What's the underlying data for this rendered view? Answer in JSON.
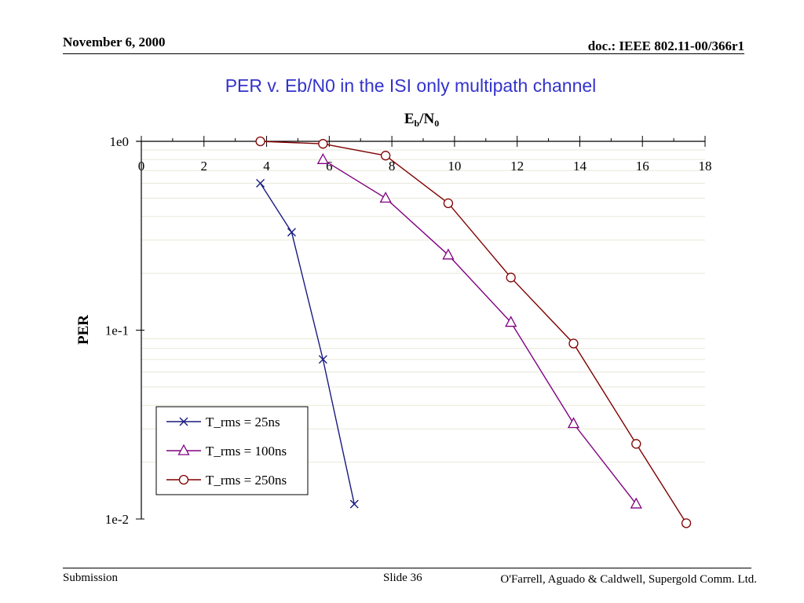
{
  "header": {
    "date": "November 6, 2000",
    "doc": "doc.: IEEE 802.11-00/366r1"
  },
  "slide_title": "PER v. Eb/N0 in the ISI only multipath channel",
  "footer": {
    "left": "Submission",
    "center": "Slide 36",
    "right": "O'Farrell, Aguado & Caldwell, Supergold Comm. Ltd."
  },
  "chart_data": {
    "type": "line",
    "title": "PER v. Eb/N0 in the ISI only multipath channel",
    "xlabel_main": "E",
    "xlabel_sub1": "b",
    "xlabel_mid": "/N",
    "xlabel_sub2": "0",
    "ylabel": "PER",
    "x_axis_position": "top",
    "xlim": [
      0,
      18
    ],
    "x_ticks": [
      0,
      2,
      4,
      6,
      8,
      10,
      12,
      14,
      16,
      18
    ],
    "ylim": [
      0.01,
      1
    ],
    "y_scale": "log",
    "y_ticks": [
      1,
      0.1,
      0.01
    ],
    "y_tick_labels": [
      "1e0",
      "1e-1",
      "1e-2"
    ],
    "grid": "horizontal minor lines",
    "legend_position": "bottom-left",
    "series": [
      {
        "name": "T_rms = 25ns",
        "marker": "x",
        "color": "#1a1a80",
        "x": [
          3.8,
          4.8,
          5.8,
          6.8
        ],
        "y": [
          0.6,
          0.33,
          0.07,
          0.012
        ]
      },
      {
        "name": "T_rms = 100ns",
        "marker": "triangle",
        "color": "#800080",
        "x": [
          5.8,
          7.8,
          9.8,
          11.8,
          13.8,
          15.8
        ],
        "y": [
          0.8,
          0.5,
          0.25,
          0.11,
          0.032,
          0.012
        ]
      },
      {
        "name": "T_rms = 250ns",
        "marker": "circle",
        "color": "#800000",
        "x": [
          3.8,
          5.8,
          7.8,
          9.8,
          11.8,
          13.8,
          15.8,
          17.4
        ],
        "y": [
          1.0,
          0.97,
          0.84,
          0.47,
          0.19,
          0.085,
          0.025,
          0.0095
        ]
      }
    ]
  }
}
